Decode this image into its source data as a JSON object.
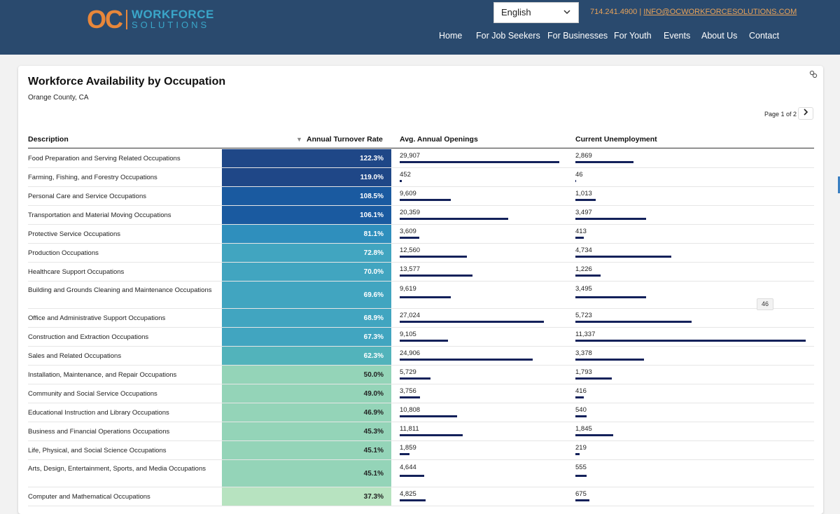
{
  "brand": {
    "oc": "OC",
    "workforce": "WORKFORCE",
    "solutions": "SOLUTIONS"
  },
  "language": {
    "selected": "English"
  },
  "contact": {
    "phone": "714.241.4900",
    "separator": "|",
    "email": "INFO@OCWORKFORCESOLUTIONS.COM"
  },
  "nav": [
    "Home",
    "For Job Seekers",
    "For Businesses",
    "For Youth",
    "Events",
    "About Us",
    "Contact"
  ],
  "report": {
    "title": "Workforce Availability by Occupation",
    "subtitle": "Orange County, CA",
    "page_label": "Page 1 of 2",
    "tooltip": "46",
    "columns": {
      "description": "Description",
      "sort_indicator": "▼",
      "turnover": "Annual Turnover Rate",
      "openings": "Avg. Annual Openings",
      "unemployment": "Current Unemployment"
    }
  },
  "rows": [
    {
      "description": "Food Preparation and Serving Related Occupations",
      "turnover": "122.3%",
      "openings": "29,907",
      "unemployment": "2,869",
      "openings_value": 29907,
      "unemployment_value": 2869
    },
    {
      "description": "Farming, Fishing, and Forestry Occupations",
      "turnover": "119.0%",
      "openings": "452",
      "unemployment": "46",
      "openings_value": 452,
      "unemployment_value": 46
    },
    {
      "description": "Personal Care and Service Occupations",
      "turnover": "108.5%",
      "openings": "9,609",
      "unemployment": "1,013",
      "openings_value": 9609,
      "unemployment_value": 1013
    },
    {
      "description": "Transportation and Material Moving Occupations",
      "turnover": "106.1%",
      "openings": "20,359",
      "unemployment": "3,497",
      "openings_value": 20359,
      "unemployment_value": 3497
    },
    {
      "description": "Protective Service Occupations",
      "turnover": "81.1%",
      "openings": "3,609",
      "unemployment": "413",
      "openings_value": 3609,
      "unemployment_value": 413
    },
    {
      "description": "Production Occupations",
      "turnover": "72.8%",
      "openings": "12,560",
      "unemployment": "4,734",
      "openings_value": 12560,
      "unemployment_value": 4734
    },
    {
      "description": "Healthcare Support Occupations",
      "turnover": "70.0%",
      "openings": "13,577",
      "unemployment": "1,226",
      "openings_value": 13577,
      "unemployment_value": 1226
    },
    {
      "description": "Building and Grounds Cleaning and Maintenance Occupations",
      "turnover": "69.6%",
      "openings": "9,619",
      "unemployment": "3,495",
      "openings_value": 9619,
      "unemployment_value": 3495
    },
    {
      "description": "Office and Administrative Support Occupations",
      "turnover": "68.9%",
      "openings": "27,024",
      "unemployment": "5,723",
      "openings_value": 27024,
      "unemployment_value": 5723
    },
    {
      "description": "Construction and Extraction Occupations",
      "turnover": "67.3%",
      "openings": "9,105",
      "unemployment": "11,337",
      "openings_value": 9105,
      "unemployment_value": 11337
    },
    {
      "description": "Sales and Related Occupations",
      "turnover": "62.3%",
      "openings": "24,906",
      "unemployment": "3,378",
      "openings_value": 24906,
      "unemployment_value": 3378
    },
    {
      "description": "Installation, Maintenance, and Repair Occupations",
      "turnover": "50.0%",
      "openings": "5,729",
      "unemployment": "1,793",
      "openings_value": 5729,
      "unemployment_value": 1793
    },
    {
      "description": "Community and Social Service Occupations",
      "turnover": "49.0%",
      "openings": "3,756",
      "unemployment": "416",
      "openings_value": 3756,
      "unemployment_value": 416
    },
    {
      "description": "Educational Instruction and Library Occupations",
      "turnover": "46.9%",
      "openings": "10,808",
      "unemployment": "540",
      "openings_value": 10808,
      "unemployment_value": 540
    },
    {
      "description": "Business and Financial Operations Occupations",
      "turnover": "45.3%",
      "openings": "11,811",
      "unemployment": "1,845",
      "openings_value": 11811,
      "unemployment_value": 1845
    },
    {
      "description": "Life, Physical, and Social Science Occupations",
      "turnover": "45.1%",
      "openings": "1,859",
      "unemployment": "219",
      "openings_value": 1859,
      "unemployment_value": 219
    },
    {
      "description": "Arts, Design, Entertainment, Sports, and Media Occupations",
      "turnover": "45.1%",
      "openings": "4,644",
      "unemployment": "555",
      "openings_value": 4644,
      "unemployment_value": 555
    },
    {
      "description": "Computer and Mathematical Occupations",
      "turnover": "37.3%",
      "openings": "4,825",
      "unemployment": "675",
      "openings_value": 4825,
      "unemployment_value": 675
    }
  ],
  "colors": {
    "header_bg": "#2a4a6e",
    "accent_orange": "#e8873a",
    "accent_teal": "#3aa6c9",
    "bar": "#13215a",
    "turnover_scale": [
      "#1f4787",
      "#1a5aa0",
      "#2f8fbd",
      "#41a5c0",
      "#52b3bb",
      "#94d4b8",
      "#b7e3c0"
    ]
  }
}
